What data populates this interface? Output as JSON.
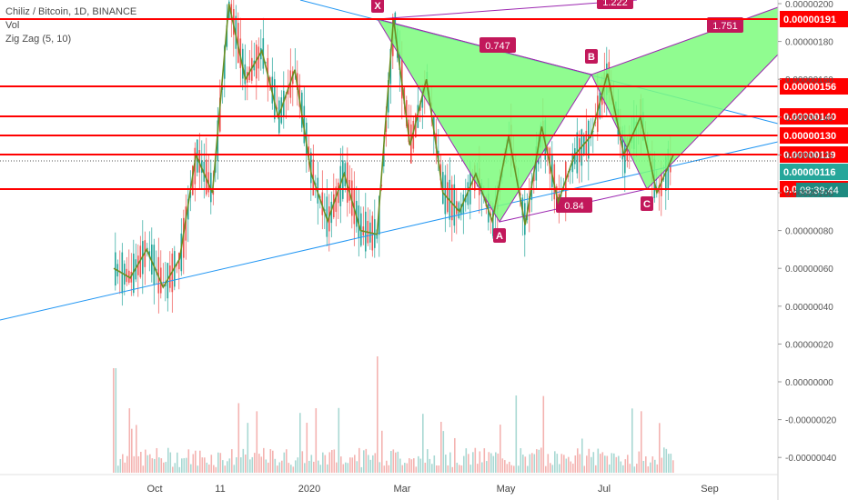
{
  "legend": {
    "title": "Chiliz / Bitcoin, 1D, BINANCE",
    "vol_label": "Vol",
    "zigzag_label": "Zig Zag (5, 10)"
  },
  "chart_data": {
    "type": "candlestick",
    "title": "Chiliz / Bitcoin, 1D, BINANCE",
    "price_ticks": [
      "0.00000200",
      "0.00000180",
      "0.00000160",
      "0.00000140",
      "0.00000120",
      "0.00000100",
      "0.00000080",
      "0.00000060",
      "0.00000040",
      "0.00000020",
      "0.00000000",
      "-0.00000020",
      "-0.00000040"
    ],
    "x_ticks": [
      "Oct",
      "11",
      "2020",
      "Mar",
      "May",
      "Jul",
      "Sep"
    ],
    "horizontal_levels": [
      {
        "label": "0.00000191",
        "value": 1.91e-06
      },
      {
        "label": "0.00000156",
        "value": 1.56e-06
      },
      {
        "label": "0.00000140",
        "value": 1.4e-06
      },
      {
        "label": "0.00000130",
        "value": 1.3e-06
      },
      {
        "label": "0.00000119",
        "value": 1.19e-06
      },
      {
        "label": "0.00000101",
        "value": 1.01e-06
      }
    ],
    "current_price": {
      "label": "0.00000116",
      "value": 1.16e-06,
      "countdown": "08:39:44"
    },
    "pattern_points": [
      {
        "label": "X",
        "value": 1.92e-06
      },
      {
        "label": "A",
        "value": 8.3e-07
      },
      {
        "label": "B",
        "value": 1.63e-06
      },
      {
        "label": "C",
        "value": 1e-06
      }
    ],
    "ratios": [
      "0.747",
      "0.84",
      "1.222",
      "1.751"
    ],
    "zigzag": [
      0.6,
      0.55,
      0.7,
      0.5,
      0.65,
      1.2,
      1.0,
      2.0,
      1.6,
      1.75,
      1.4,
      1.65,
      1.1,
      0.85,
      1.1,
      0.8,
      0.78,
      1.92,
      1.25,
      1.6,
      1.0,
      0.9,
      1.1,
      0.85,
      1.3,
      0.83,
      1.35,
      0.95,
      1.2,
      1.3,
      1.63,
      1.2,
      1.4,
      1.0,
      1.2
    ],
    "colors": {
      "up": "#26a69a",
      "down": "#ef5350",
      "level": "#ff0000",
      "harmonic": "#7cfc7c",
      "pattern_line": "#9c27b0",
      "trend": "#2196f3",
      "zigzag": "#6b8e23",
      "current": "#26a69a"
    }
  }
}
